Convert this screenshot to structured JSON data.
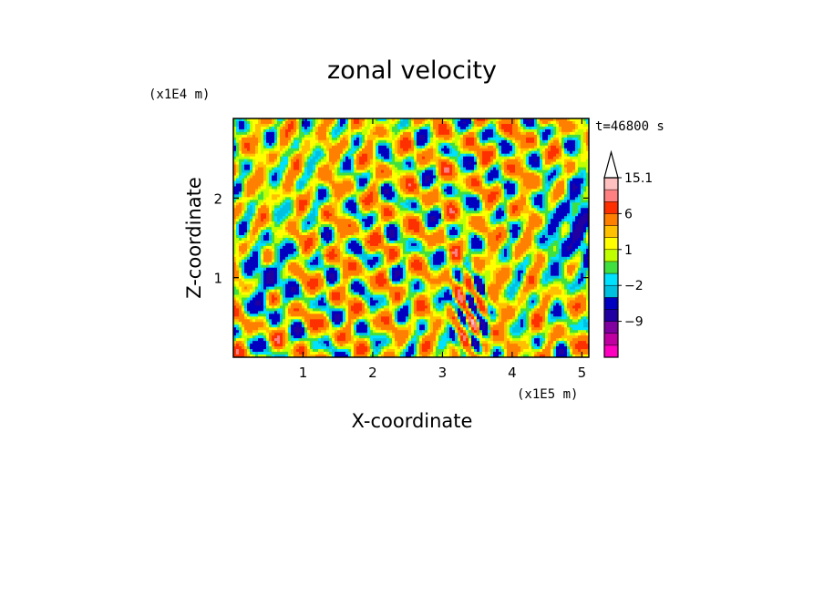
{
  "chart_data": {
    "type": "heatmap",
    "title": "zonal velocity",
    "xlabel": "X-coordinate",
    "ylabel": "Z-coordinate",
    "x_scale_label": "(x1E5 m)",
    "y_scale_label": "(x1E4 m)",
    "time_label": "t=46800 s",
    "xlim": [
      0,
      5.1
    ],
    "ylim": [
      0,
      3.0
    ],
    "x_ticks": [
      1,
      2,
      3,
      4,
      5
    ],
    "x_tick_labels": [
      "1",
      "2",
      "3",
      "4",
      "5"
    ],
    "y_ticks": [
      1,
      2
    ],
    "y_tick_labels": [
      "1",
      "2"
    ],
    "colorbar": {
      "levels": [
        -15,
        -12,
        -9,
        -6,
        -3,
        -2,
        -1,
        0,
        1,
        2,
        3,
        6,
        9,
        12,
        15.1
      ],
      "labeled_levels": [
        15.1,
        6,
        1,
        -2,
        -9
      ],
      "labels": [
        "15.1",
        "6",
        "1",
        "−2",
        "−9"
      ],
      "colors": [
        "#ff00c0",
        "#c000a0",
        "#8000a0",
        "#2000a0",
        "#0000c0",
        "#00c0e0",
        "#00e0ff",
        "#40e040",
        "#c0ff00",
        "#ffff00",
        "#ffc000",
        "#ff8000",
        "#ff3000",
        "#ff8080",
        "#ffc0c0"
      ],
      "extend_top": true
    }
  }
}
